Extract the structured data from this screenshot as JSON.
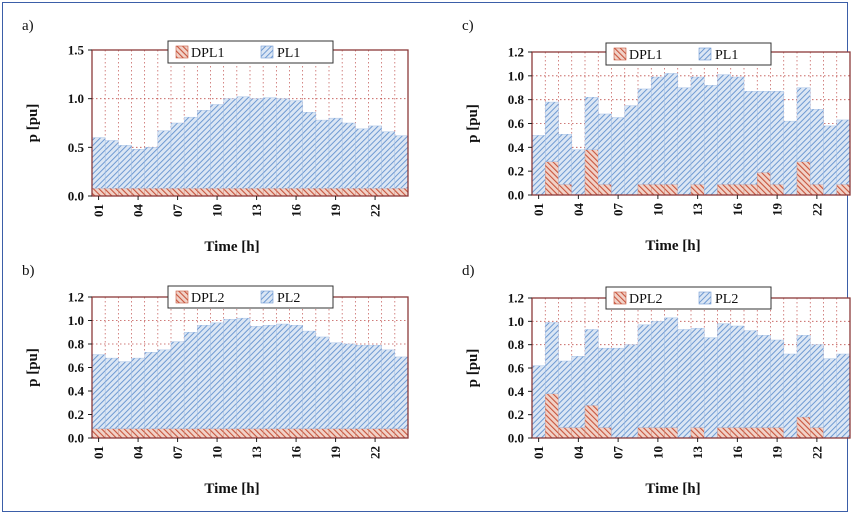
{
  "colors": {
    "dpl_fill": "#c8553d",
    "pl_fill": "#7ea6d8",
    "plot_border": "#8b3a3a",
    "grid": "#c0504d",
    "frame": "#3b5ea8"
  },
  "chart_data": [
    {
      "id": "a",
      "panel_label": "a)",
      "type": "bar",
      "stacked": true,
      "xlabel": "Time [h]",
      "ylabel": "p [pu]",
      "ylim": [
        0,
        1.5
      ],
      "yticks": [
        "0.0",
        "0.5",
        "1.0",
        "1.5"
      ],
      "ytick_values": [
        0,
        0.5,
        1.0,
        1.5
      ],
      "categories": [
        1,
        2,
        3,
        4,
        5,
        6,
        7,
        8,
        9,
        10,
        11,
        12,
        13,
        14,
        15,
        16,
        17,
        18,
        19,
        20,
        21,
        22,
        23,
        24
      ],
      "xtick_labels": [
        "01",
        "04",
        "07",
        "10",
        "13",
        "16",
        "19",
        "22"
      ],
      "xtick_positions": [
        1,
        4,
        7,
        10,
        13,
        16,
        19,
        22
      ],
      "legend": [
        "DPL1",
        "PL1"
      ],
      "grid": true,
      "series": [
        {
          "name": "DPL1",
          "values": [
            0.08,
            0.08,
            0.08,
            0.08,
            0.08,
            0.08,
            0.08,
            0.08,
            0.08,
            0.08,
            0.08,
            0.08,
            0.08,
            0.08,
            0.08,
            0.08,
            0.08,
            0.08,
            0.08,
            0.08,
            0.08,
            0.08,
            0.08,
            0.08
          ]
        },
        {
          "name": "PL1",
          "values": [
            0.52,
            0.49,
            0.44,
            0.4,
            0.42,
            0.59,
            0.67,
            0.73,
            0.8,
            0.86,
            0.92,
            0.94,
            0.92,
            0.93,
            0.92,
            0.9,
            0.78,
            0.7,
            0.72,
            0.67,
            0.61,
            0.64,
            0.58,
            0.54
          ]
        }
      ]
    },
    {
      "id": "b",
      "panel_label": "b)",
      "type": "bar",
      "stacked": true,
      "xlabel": "Time [h]",
      "ylabel": "p [pu]",
      "ylim": [
        0,
        1.2
      ],
      "yticks": [
        "0.0",
        "0.2",
        "0.4",
        "0.6",
        "0.8",
        "1.0",
        "1.2"
      ],
      "ytick_values": [
        0,
        0.2,
        0.4,
        0.6,
        0.8,
        1.0,
        1.2
      ],
      "categories": [
        1,
        2,
        3,
        4,
        5,
        6,
        7,
        8,
        9,
        10,
        11,
        12,
        13,
        14,
        15,
        16,
        17,
        18,
        19,
        20,
        21,
        22,
        23,
        24
      ],
      "xtick_labels": [
        "01",
        "04",
        "07",
        "10",
        "13",
        "16",
        "19",
        "22"
      ],
      "xtick_positions": [
        1,
        4,
        7,
        10,
        13,
        16,
        19,
        22
      ],
      "legend": [
        "DPL2",
        "PL2"
      ],
      "grid": true,
      "series": [
        {
          "name": "DPL2",
          "values": [
            0.08,
            0.08,
            0.08,
            0.08,
            0.08,
            0.08,
            0.08,
            0.08,
            0.08,
            0.08,
            0.08,
            0.08,
            0.08,
            0.08,
            0.08,
            0.08,
            0.08,
            0.08,
            0.08,
            0.08,
            0.08,
            0.08,
            0.08,
            0.08
          ]
        },
        {
          "name": "PL2",
          "values": [
            0.63,
            0.6,
            0.57,
            0.6,
            0.65,
            0.67,
            0.74,
            0.82,
            0.88,
            0.9,
            0.93,
            0.94,
            0.87,
            0.88,
            0.89,
            0.88,
            0.83,
            0.78,
            0.73,
            0.72,
            0.71,
            0.71,
            0.67,
            0.61
          ]
        }
      ]
    },
    {
      "id": "c",
      "panel_label": "c)",
      "type": "bar",
      "stacked": true,
      "xlabel": "Time [h]",
      "ylabel": "p [pu]",
      "ylim": [
        0,
        1.2
      ],
      "yticks": [
        "0.0",
        "0.2",
        "0.4",
        "0.6",
        "0.8",
        "1.0",
        "1.2"
      ],
      "ytick_values": [
        0,
        0.2,
        0.4,
        0.6,
        0.8,
        1.0,
        1.2
      ],
      "categories": [
        1,
        2,
        3,
        4,
        5,
        6,
        7,
        8,
        9,
        10,
        11,
        12,
        13,
        14,
        15,
        16,
        17,
        18,
        19,
        20,
        21,
        22,
        23,
        24
      ],
      "xtick_labels": [
        "01",
        "04",
        "07",
        "10",
        "13",
        "16",
        "19",
        "22"
      ],
      "xtick_positions": [
        1,
        4,
        7,
        10,
        13,
        16,
        19,
        22
      ],
      "legend": [
        "DPL1",
        "PL1"
      ],
      "grid": true,
      "series": [
        {
          "name": "DPL1",
          "values": [
            0.0,
            0.28,
            0.09,
            0.0,
            0.38,
            0.09,
            0.0,
            0.0,
            0.09,
            0.09,
            0.09,
            0.0,
            0.09,
            0.0,
            0.09,
            0.09,
            0.09,
            0.19,
            0.09,
            0.0,
            0.28,
            0.09,
            0.0,
            0.09
          ]
        },
        {
          "name": "PL1",
          "values": [
            0.5,
            0.5,
            0.42,
            0.38,
            0.44,
            0.59,
            0.65,
            0.75,
            0.8,
            0.9,
            0.93,
            0.9,
            0.9,
            0.92,
            0.92,
            0.9,
            0.78,
            0.68,
            0.78,
            0.62,
            0.62,
            0.63,
            0.58,
            0.54
          ]
        }
      ]
    },
    {
      "id": "d",
      "panel_label": "d)",
      "type": "bar",
      "stacked": true,
      "xlabel": "Time [h]",
      "ylabel": "p [pu]",
      "ylim": [
        0,
        1.2
      ],
      "yticks": [
        "0.0",
        "0.2",
        "0.4",
        "0.6",
        "0.8",
        "1.0",
        "1.2"
      ],
      "ytick_values": [
        0,
        0.2,
        0.4,
        0.6,
        0.8,
        1.0,
        1.2
      ],
      "categories": [
        1,
        2,
        3,
        4,
        5,
        6,
        7,
        8,
        9,
        10,
        11,
        12,
        13,
        14,
        15,
        16,
        17,
        18,
        19,
        20,
        21,
        22,
        23,
        24
      ],
      "xtick_labels": [
        "01",
        "04",
        "07",
        "10",
        "13",
        "16",
        "19",
        "22"
      ],
      "xtick_positions": [
        1,
        4,
        7,
        10,
        13,
        16,
        19,
        22
      ],
      "legend": [
        "DPL2",
        "PL2"
      ],
      "grid": true,
      "series": [
        {
          "name": "DPL2",
          "values": [
            0.0,
            0.38,
            0.09,
            0.09,
            0.28,
            0.09,
            0.0,
            0.0,
            0.09,
            0.09,
            0.09,
            0.0,
            0.09,
            0.0,
            0.09,
            0.09,
            0.09,
            0.09,
            0.09,
            0.0,
            0.18,
            0.09,
            0.0,
            0.0
          ]
        },
        {
          "name": "PL2",
          "values": [
            0.62,
            0.61,
            0.57,
            0.61,
            0.65,
            0.68,
            0.77,
            0.8,
            0.88,
            0.91,
            0.94,
            0.93,
            0.85,
            0.86,
            0.89,
            0.87,
            0.83,
            0.79,
            0.75,
            0.72,
            0.7,
            0.71,
            0.68,
            0.72
          ]
        }
      ]
    }
  ]
}
